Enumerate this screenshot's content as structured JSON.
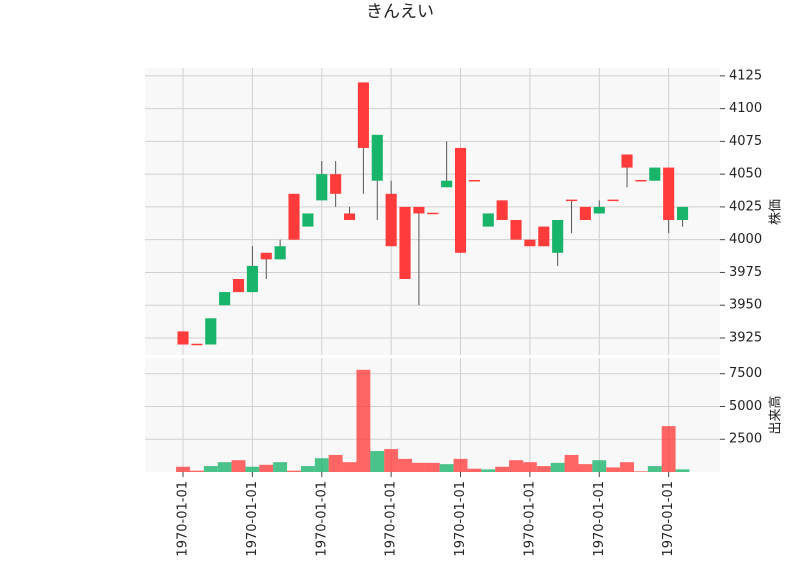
{
  "chart_data": {
    "type": "candlestick",
    "title": "きんえい",
    "categories": [
      "1970-01-01",
      null,
      null,
      null,
      null,
      "1970-01-01",
      null,
      null,
      null,
      null,
      "1970-01-01",
      null,
      null,
      null,
      null,
      "1970-01-01",
      null,
      null,
      null,
      null,
      "1970-01-01",
      null,
      null,
      null,
      null,
      "1970-01-01",
      null,
      null,
      null,
      null,
      "1970-01-01",
      null,
      null,
      null,
      null,
      "1970-01-01",
      null
    ],
    "open": [
      3920,
      3920,
      3940,
      3960,
      3960,
      3980,
      3985,
      3995,
      4000,
      4020,
      4050,
      4035,
      4015,
      4070,
      4080,
      3995,
      3970,
      4020,
      4020,
      4045,
      3990,
      4045,
      4020,
      4015,
      4000,
      3995,
      3995,
      4015,
      4030,
      4015,
      4025,
      4030,
      4055,
      4045,
      4055,
      4015,
      4025
    ],
    "high": [
      3930,
      3920,
      3940,
      3960,
      3970,
      3995,
      3990,
      4000,
      4035,
      4020,
      4060,
      4060,
      4025,
      4120,
      4080,
      4045,
      4025,
      4025,
      4020,
      4075,
      4070,
      4045,
      4020,
      4030,
      4015,
      4000,
      4010,
      4015,
      4030,
      4025,
      4030,
      4030,
      4065,
      4045,
      4055,
      4055,
      4025
    ],
    "low": [
      3920,
      3920,
      3920,
      3950,
      3960,
      3960,
      3970,
      3985,
      4000,
      4010,
      4030,
      4025,
      4015,
      4035,
      4015,
      3995,
      3970,
      3950,
      4020,
      4040,
      3990,
      4045,
      4010,
      4015,
      4000,
      3995,
      3995,
      3980,
      4005,
      4015,
      4020,
      4030,
      4040,
      4045,
      4045,
      4005,
      4010
    ],
    "close": [
      3930,
      3920,
      3920,
      3950,
      3970,
      3960,
      3990,
      3985,
      4035,
      4010,
      4030,
      4050,
      4020,
      4120,
      4045,
      4035,
      4025,
      4025,
      4020,
      4040,
      4070,
      4045,
      4010,
      4030,
      4015,
      4000,
      4010,
      3990,
      4030,
      4025,
      4020,
      4030,
      4065,
      4045,
      4045,
      4055,
      4015
    ],
    "volume": [
      400,
      100,
      450,
      750,
      900,
      400,
      550,
      750,
      100,
      450,
      1050,
      1300,
      750,
      7800,
      1600,
      1750,
      1000,
      700,
      700,
      600,
      1000,
      250,
      200,
      400,
      900,
      750,
      450,
      700,
      1300,
      600,
      900,
      350,
      750,
      50,
      450,
      3500,
      200
    ],
    "up_color": "#ff3b3b",
    "down_color": "#17b46a",
    "xlim": [
      -2.74,
      38.7
    ],
    "ylim": [
      3912,
      4131
    ],
    "yticks": [
      3925,
      3950,
      3975,
      4000,
      4025,
      4050,
      4075,
      4100,
      4125
    ],
    "ylabel": "株価",
    "volume_ylim": [
      0,
      8700
    ],
    "volume_yticks": [
      2500,
      5000,
      7500
    ],
    "volume_ylabel": "出来高",
    "grid": true
  }
}
